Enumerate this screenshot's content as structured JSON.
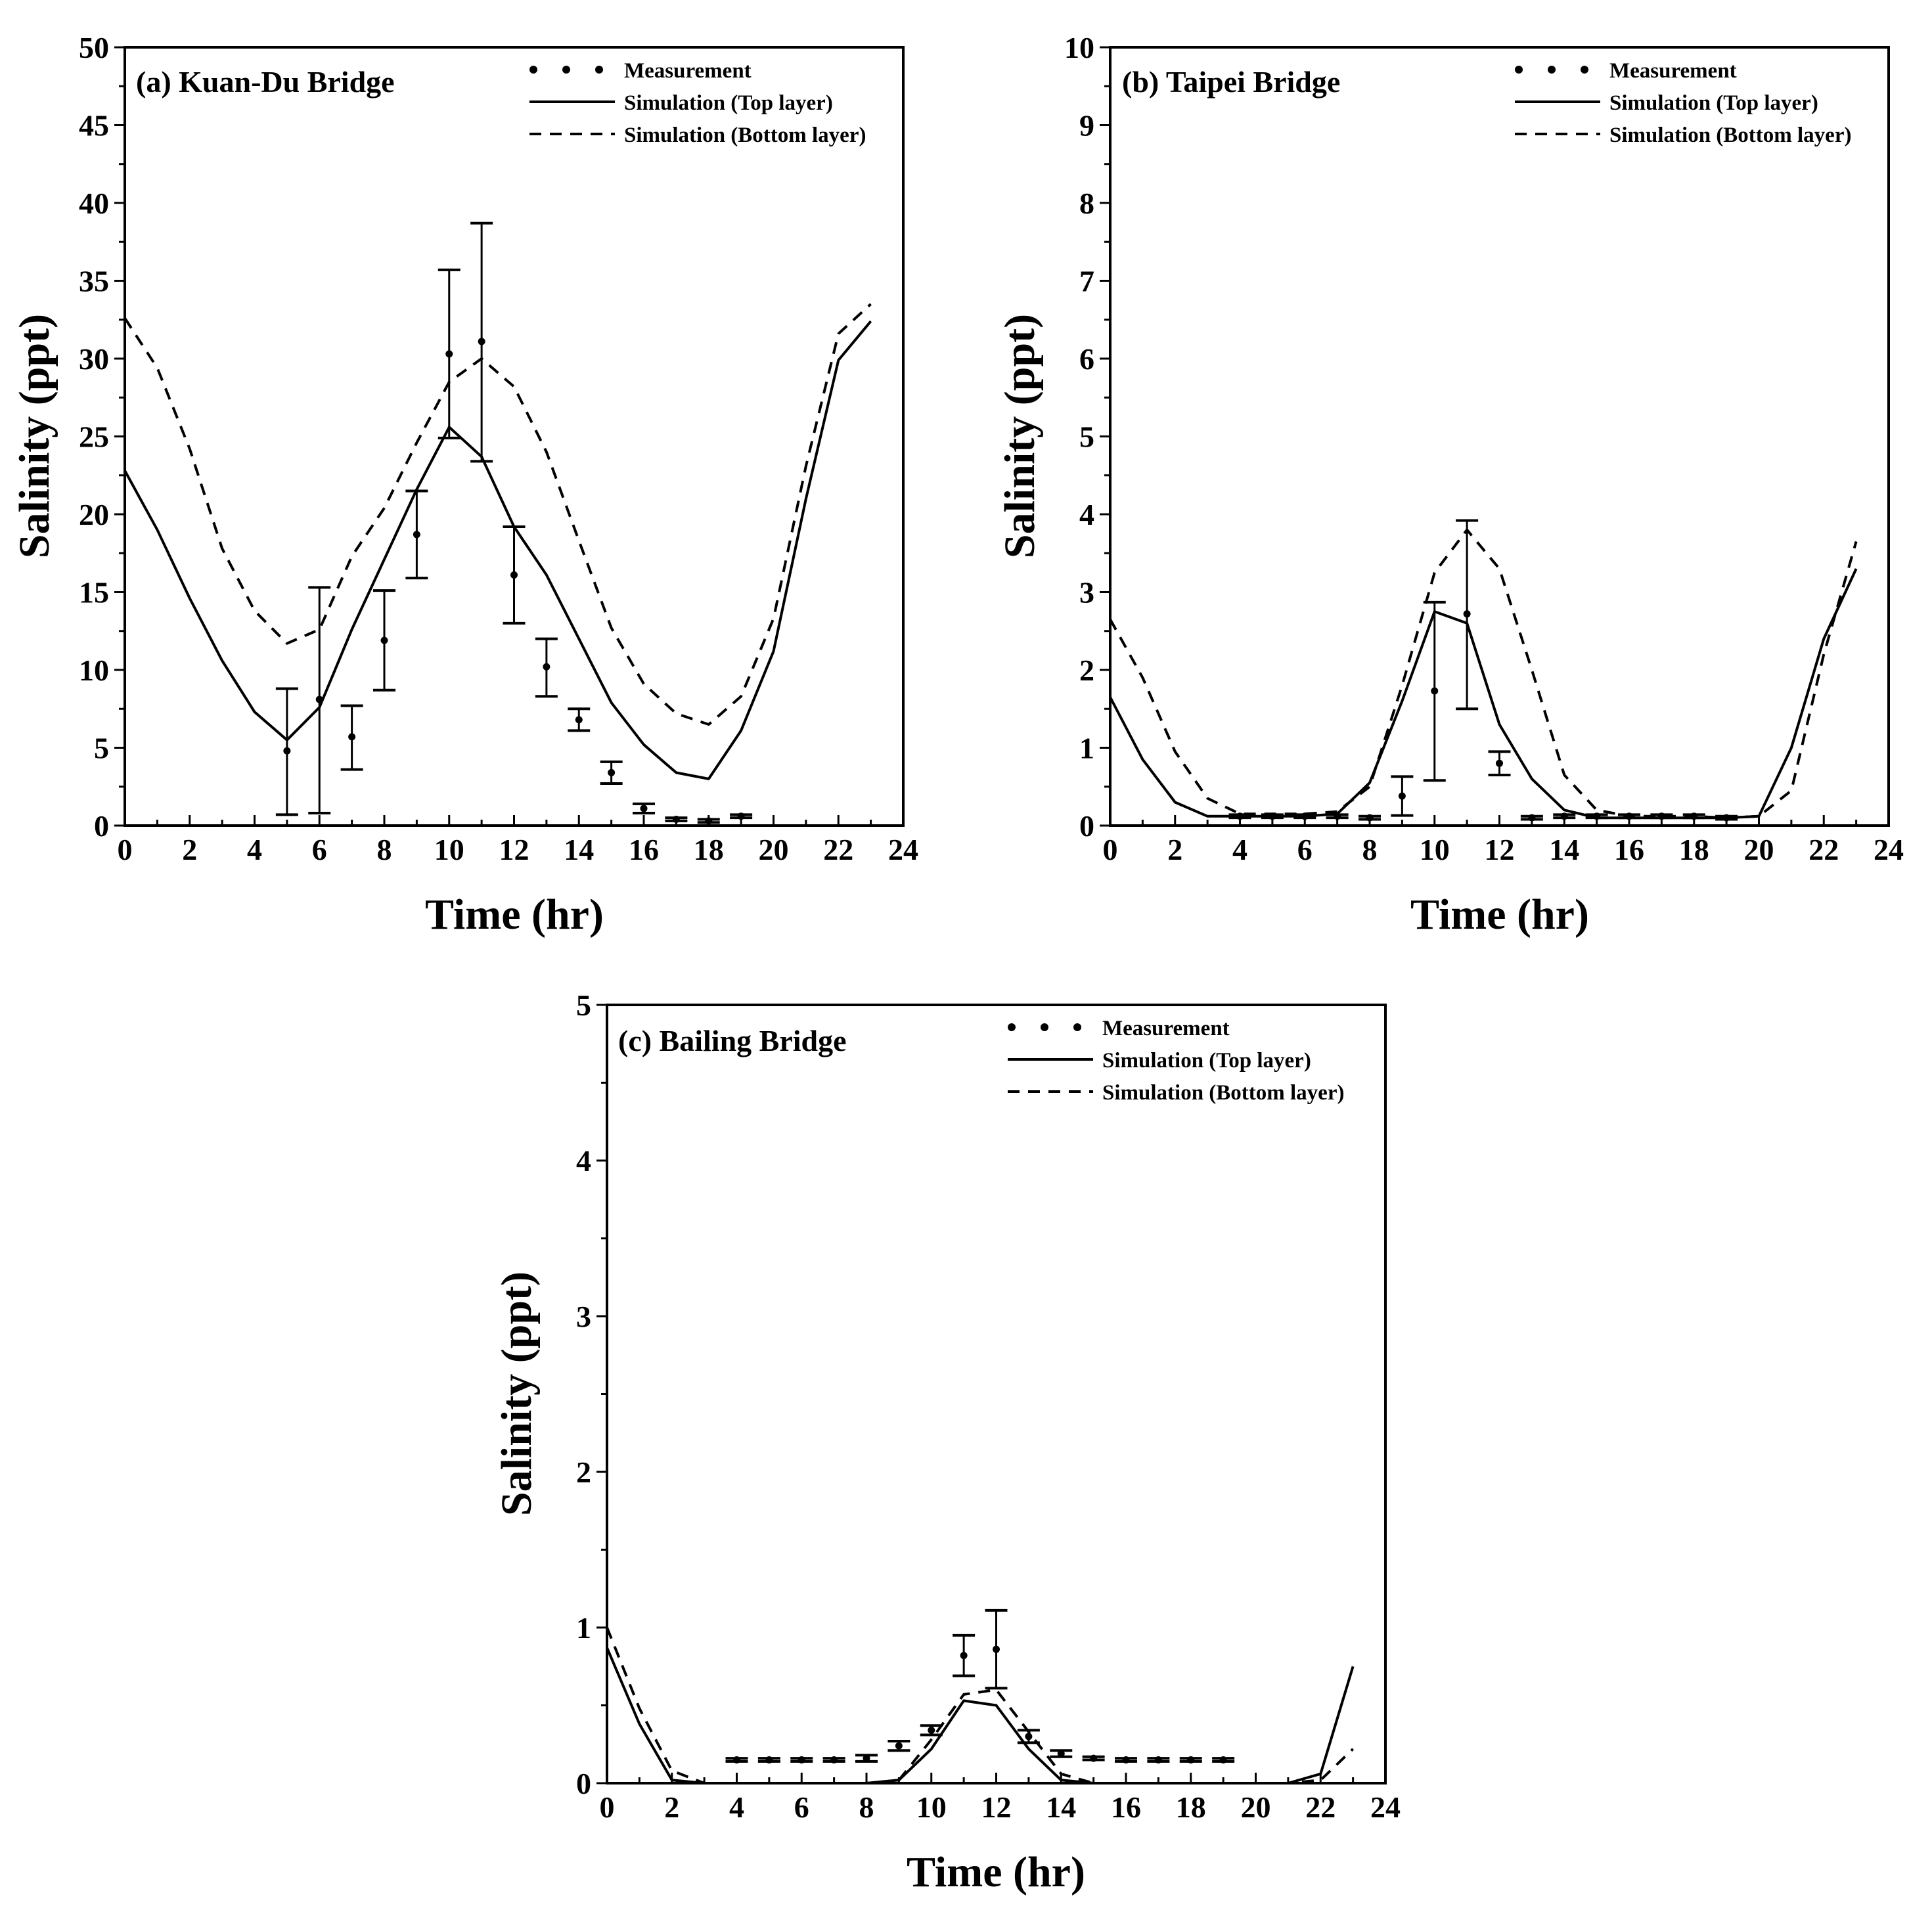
{
  "figure": {
    "panels_count": 3
  },
  "chart_data": [
    {
      "type": "line",
      "panel_id": "a",
      "title": "(a) Kuan-Du Bridge",
      "xlabel": "Time (hr)",
      "ylabel": "Salinity (ppt)",
      "xlim": [
        0,
        24
      ],
      "ylim": [
        0,
        50
      ],
      "xticks": [
        0,
        2,
        4,
        6,
        8,
        10,
        12,
        14,
        16,
        18,
        20,
        22,
        24
      ],
      "xtick_labels": [
        "0",
        "2",
        "4",
        "6",
        "8",
        "10",
        "12",
        "14",
        "16",
        "18",
        "20",
        "22",
        "24"
      ],
      "yticks": [
        0,
        5,
        10,
        15,
        20,
        25,
        30,
        35,
        40,
        45,
        50
      ],
      "ytick_labels": [
        "0",
        "5",
        "10",
        "15",
        "20",
        "25",
        "30",
        "35",
        "40",
        "45",
        "50"
      ],
      "legend": {
        "position": "top-right",
        "entries": [
          "Measurement",
          "Simulation (Top layer)",
          "Simulation (Bottom layer)"
        ]
      },
      "series": [
        {
          "name": "Simulation (Top layer)",
          "style": "solid",
          "x": [
            0,
            1,
            2,
            3,
            4,
            5,
            6,
            7,
            8,
            9,
            10,
            11,
            12,
            13,
            14,
            15,
            16,
            17,
            18,
            19,
            20,
            21,
            22,
            23
          ],
          "y": [
            22.8,
            19.0,
            14.6,
            10.6,
            7.3,
            5.5,
            7.6,
            12.6,
            17.1,
            21.6,
            25.6,
            23.7,
            19.2,
            16.1,
            12.0,
            7.9,
            5.2,
            3.4,
            3.0,
            6.1,
            11.2,
            21.0,
            29.9,
            32.4
          ]
        },
        {
          "name": "Simulation (Bottom layer)",
          "style": "dashed",
          "x": [
            0,
            1,
            2,
            3,
            4,
            5,
            6,
            7,
            8,
            9,
            10,
            11,
            12,
            13,
            14,
            15,
            16,
            17,
            18,
            19,
            20,
            21,
            22,
            23
          ],
          "y": [
            32.6,
            29.4,
            24.2,
            17.8,
            13.8,
            11.7,
            12.6,
            17.3,
            20.4,
            24.6,
            28.5,
            30.0,
            28.2,
            24.0,
            18.3,
            12.7,
            9.1,
            7.2,
            6.5,
            8.3,
            13.3,
            23.1,
            31.6,
            33.5
          ]
        },
        {
          "name": "Measurement",
          "style": "points",
          "x": [
            5,
            6,
            7,
            8,
            9,
            10,
            11,
            12,
            13,
            14,
            15,
            16,
            17,
            18,
            19
          ],
          "y": [
            4.8,
            8.1,
            5.7,
            11.9,
            18.7,
            30.3,
            31.1,
            16.1,
            10.2,
            6.8,
            3.4,
            1.1,
            0.4,
            0.3,
            0.6
          ],
          "err_low": [
            0.7,
            0.8,
            3.6,
            8.7,
            15.9,
            24.9,
            23.4,
            13.0,
            8.3,
            6.1,
            2.7,
            0.8,
            0.3,
            0.2,
            0.5
          ],
          "err_high": [
            8.8,
            15.3,
            7.7,
            15.1,
            21.5,
            35.7,
            38.7,
            19.2,
            12.0,
            7.5,
            4.1,
            1.4,
            0.5,
            0.4,
            0.7
          ]
        }
      ]
    },
    {
      "type": "line",
      "panel_id": "b",
      "title": "(b) Taipei Bridge",
      "xlabel": "Time (hr)",
      "ylabel": "Salinity (ppt)",
      "xlim": [
        0,
        24
      ],
      "ylim": [
        0,
        10
      ],
      "xticks": [
        0,
        2,
        4,
        6,
        8,
        10,
        12,
        14,
        16,
        18,
        20,
        22,
        24
      ],
      "xtick_labels": [
        "0",
        "2",
        "4",
        "6",
        "8",
        "10",
        "12",
        "14",
        "16",
        "18",
        "20",
        "22",
        "24"
      ],
      "yticks": [
        0,
        1,
        2,
        3,
        4,
        5,
        6,
        7,
        8,
        9,
        10
      ],
      "ytick_labels": [
        "0",
        "1",
        "2",
        "3",
        "4",
        "5",
        "6",
        "7",
        "8",
        "9",
        "10"
      ],
      "legend": {
        "position": "top-right",
        "entries": [
          "Measurement",
          "Simulation (Top layer)",
          "Simulation (Bottom layer)"
        ]
      },
      "series": [
        {
          "name": "Simulation (Top layer)",
          "style": "solid",
          "x": [
            0,
            1,
            2,
            3,
            4,
            5,
            6,
            7,
            8,
            9,
            10,
            11,
            12,
            13,
            14,
            15,
            16,
            17,
            18,
            19,
            20,
            21,
            22,
            23
          ],
          "y": [
            1.65,
            0.85,
            0.3,
            0.12,
            0.12,
            0.12,
            0.12,
            0.15,
            0.55,
            1.6,
            2.75,
            2.6,
            1.3,
            0.6,
            0.2,
            0.1,
            0.1,
            0.1,
            0.1,
            0.1,
            0.12,
            1.0,
            2.4,
            3.3
          ]
        },
        {
          "name": "Simulation (Bottom layer)",
          "style": "dashed",
          "x": [
            0,
            1,
            2,
            3,
            4,
            5,
            6,
            7,
            8,
            9,
            10,
            11,
            12,
            13,
            14,
            15,
            16,
            17,
            18,
            19,
            20,
            21,
            22,
            23
          ],
          "y": [
            2.65,
            1.9,
            0.95,
            0.35,
            0.15,
            0.15,
            0.15,
            0.18,
            0.5,
            1.8,
            3.25,
            3.8,
            3.3,
            2.0,
            0.65,
            0.2,
            0.12,
            0.12,
            0.12,
            0.1,
            0.12,
            0.45,
            2.2,
            3.65
          ]
        },
        {
          "name": "Measurement",
          "style": "points",
          "x": [
            4,
            5,
            6,
            7,
            8,
            9,
            10,
            11,
            12,
            13,
            14,
            15,
            16,
            17,
            18,
            19
          ],
          "y": [
            0.12,
            0.12,
            0.12,
            0.12,
            0.1,
            0.38,
            1.73,
            2.72,
            0.8,
            0.1,
            0.12,
            0.12,
            0.12,
            0.12,
            0.12,
            0.1
          ],
          "err_low": [
            0.1,
            0.1,
            0.1,
            0.1,
            0.08,
            0.13,
            0.58,
            1.5,
            0.65,
            0.08,
            0.1,
            0.1,
            0.1,
            0.1,
            0.1,
            0.08
          ],
          "err_high": [
            0.14,
            0.14,
            0.14,
            0.14,
            0.12,
            0.63,
            2.87,
            3.92,
            0.95,
            0.12,
            0.14,
            0.14,
            0.14,
            0.14,
            0.14,
            0.12
          ]
        }
      ]
    },
    {
      "type": "line",
      "panel_id": "c",
      "title": "(c) Bailing Bridge",
      "xlabel": "Time (hr)",
      "ylabel": "Salinity (ppt)",
      "xlim": [
        0,
        24
      ],
      "ylim": [
        0,
        5
      ],
      "xticks": [
        0,
        2,
        4,
        6,
        8,
        10,
        12,
        14,
        16,
        18,
        20,
        22,
        24
      ],
      "xtick_labels": [
        "0",
        "2",
        "4",
        "6",
        "8",
        "10",
        "12",
        "14",
        "16",
        "18",
        "20",
        "22",
        "24"
      ],
      "yticks": [
        0,
        1,
        2,
        3,
        4,
        5
      ],
      "ytick_labels": [
        "0",
        "1",
        "2",
        "3",
        "4",
        "5"
      ],
      "legend": {
        "position": "top-right",
        "entries": [
          "Measurement",
          "Simulation (Top layer)",
          "Simulation (Bottom layer)"
        ]
      },
      "series": [
        {
          "name": "Simulation (Top layer)",
          "style": "solid",
          "x": [
            0,
            1,
            2,
            3,
            4,
            5,
            6,
            7,
            8,
            9,
            10,
            11,
            12,
            13,
            14,
            15,
            16,
            17,
            18,
            19,
            20,
            21,
            22,
            23
          ],
          "y": [
            0.87,
            0.38,
            0.02,
            0.0,
            0.0,
            0.0,
            0.0,
            0.0,
            0.0,
            0.02,
            0.22,
            0.53,
            0.5,
            0.22,
            0.02,
            0.0,
            0.0,
            0.0,
            0.0,
            0.0,
            0.0,
            0.0,
            0.06,
            0.75
          ]
        },
        {
          "name": "Simulation (Bottom layer)",
          "style": "dashed",
          "x": [
            0,
            1,
            2,
            3,
            4,
            5,
            6,
            7,
            8,
            9,
            10,
            11,
            12,
            13,
            14,
            15,
            16,
            17,
            18,
            19,
            20,
            21,
            22,
            23
          ],
          "y": [
            1.0,
            0.48,
            0.08,
            0.0,
            0.0,
            0.0,
            0.0,
            0.0,
            0.0,
            0.02,
            0.28,
            0.57,
            0.6,
            0.33,
            0.06,
            0.0,
            0.0,
            0.0,
            0.0,
            0.0,
            0.0,
            0.0,
            0.02,
            0.22
          ]
        },
        {
          "name": "Measurement",
          "style": "points",
          "x": [
            4,
            5,
            6,
            7,
            8,
            9,
            10,
            11,
            12,
            13,
            14,
            15,
            16,
            17,
            18,
            19
          ],
          "y": [
            0.15,
            0.15,
            0.15,
            0.15,
            0.16,
            0.24,
            0.34,
            0.82,
            0.86,
            0.3,
            0.19,
            0.16,
            0.15,
            0.15,
            0.15,
            0.15
          ],
          "err_low": [
            0.14,
            0.14,
            0.14,
            0.14,
            0.14,
            0.21,
            0.31,
            0.69,
            0.61,
            0.26,
            0.17,
            0.15,
            0.14,
            0.14,
            0.14,
            0.14
          ],
          "err_high": [
            0.16,
            0.16,
            0.16,
            0.16,
            0.18,
            0.27,
            0.37,
            0.95,
            1.11,
            0.34,
            0.21,
            0.17,
            0.16,
            0.16,
            0.16,
            0.16
          ]
        }
      ]
    }
  ]
}
